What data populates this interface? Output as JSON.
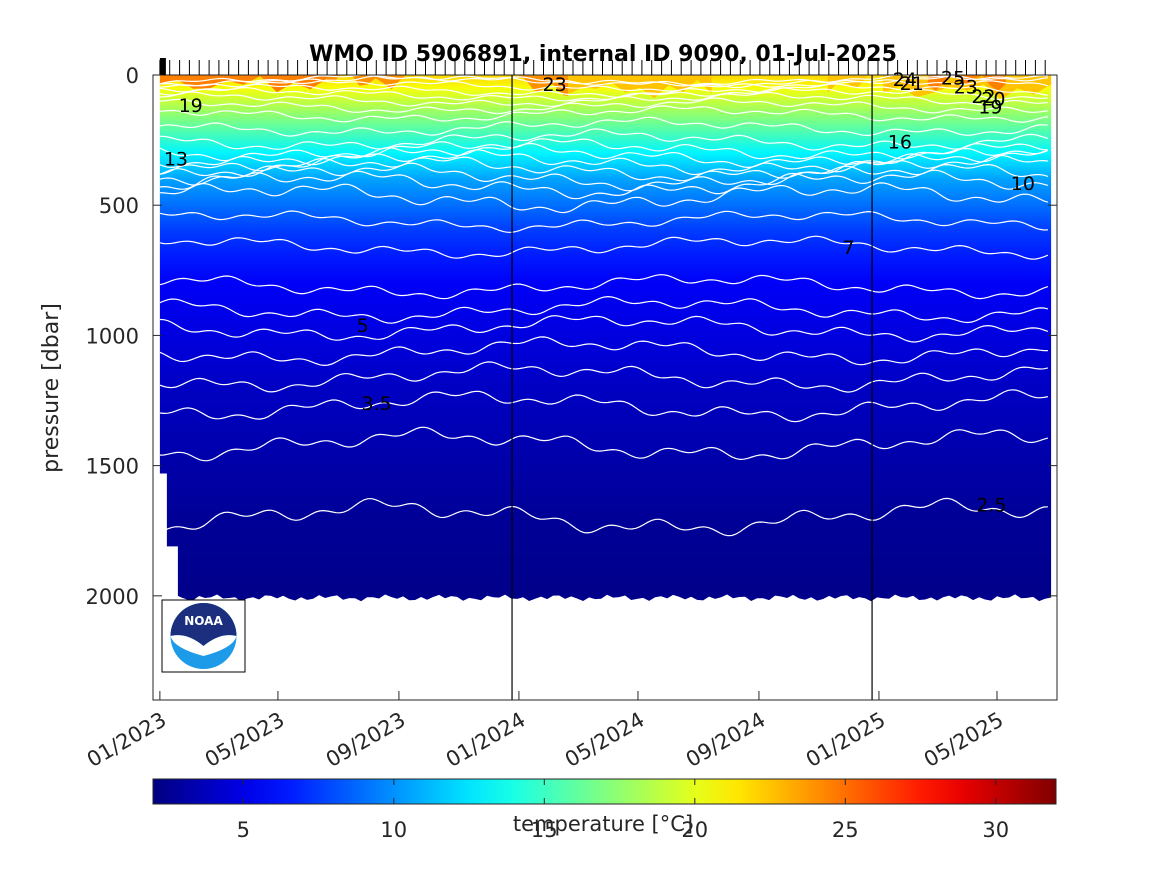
{
  "chart_data": {
    "type": "heatmap",
    "title": "WMO ID 5906891, internal ID 9090, 01-Jul-2025",
    "ylabel": "pressure [dbar]",
    "ylim": [
      0,
      2400
    ],
    "y_reversed": true,
    "y_ticks": [
      0,
      500,
      1000,
      1500,
      2000
    ],
    "y_tick_labels": [
      "0",
      "500",
      "1000",
      "1500",
      "2000"
    ],
    "x_ticks": [
      "2023-01-01",
      "2023-05-01",
      "2023-09-01",
      "2024-01-01",
      "2024-05-01",
      "2024-09-01",
      "2025-01-01",
      "2025-05-01"
    ],
    "x_tick_labels": [
      "01/2023",
      "05/2023",
      "09/2023",
      "01/2024",
      "05/2024",
      "09/2024",
      "01/2025",
      "05/2025"
    ],
    "xlim": [
      "2022-12-25",
      "2025-07-01"
    ],
    "year_boundaries": [
      "2023-12-25",
      "2024-12-25"
    ],
    "data_time_range": [
      "2023-01-01",
      "2025-06-25"
    ],
    "data_max_pressure": 2000,
    "temperature_profile": [
      {
        "pressure": 0,
        "temperature": 22
      },
      {
        "pressure": 50,
        "temperature": 20.5
      },
      {
        "pressure": 100,
        "temperature": 19
      },
      {
        "pressure": 200,
        "temperature": 16
      },
      {
        "pressure": 300,
        "temperature": 13
      },
      {
        "pressure": 400,
        "temperature": 10.5
      },
      {
        "pressure": 500,
        "temperature": 9
      },
      {
        "pressure": 600,
        "temperature": 7.5
      },
      {
        "pressure": 700,
        "temperature": 6.5
      },
      {
        "pressure": 800,
        "temperature": 5.5
      },
      {
        "pressure": 1000,
        "temperature": 4.8
      },
      {
        "pressure": 1200,
        "temperature": 4
      },
      {
        "pressure": 1500,
        "temperature": 3.2
      },
      {
        "pressure": 1700,
        "temperature": 2.7
      },
      {
        "pressure": 2000,
        "temperature": 2.3
      }
    ],
    "contour_levels": [
      {
        "temperature": 25,
        "pressure": 25
      },
      {
        "temperature": 24,
        "pressure": 20
      },
      {
        "temperature": 23,
        "pressure": 40
      },
      {
        "temperature": 22,
        "pressure": 60
      },
      {
        "temperature": 21,
        "pressure": 75
      },
      {
        "temperature": 20,
        "pressure": 95
      },
      {
        "temperature": 19,
        "pressure": 120
      },
      {
        "temperature": 18,
        "pressure": 150
      },
      {
        "temperature": 17,
        "pressure": 200
      },
      {
        "temperature": 16,
        "pressure": 250
      },
      {
        "temperature": 15,
        "pressure": 285
      },
      {
        "temperature": 14,
        "pressure": 310
      },
      {
        "temperature": 13,
        "pressure": 335
      },
      {
        "temperature": 12,
        "pressure": 360
      },
      {
        "temperature": 11,
        "pressure": 390
      },
      {
        "temperature": 10,
        "pressure": 420
      },
      {
        "temperature": 9,
        "pressure": 470
      },
      {
        "temperature": 8,
        "pressure": 560
      },
      {
        "temperature": 7,
        "pressure": 660
      },
      {
        "temperature": 6,
        "pressure": 810
      },
      {
        "temperature": 5.5,
        "pressure": 900
      },
      {
        "temperature": 5,
        "pressure": 970
      },
      {
        "temperature": 4.5,
        "pressure": 1060
      },
      {
        "temperature": 4,
        "pressure": 1160
      },
      {
        "temperature": 3.5,
        "pressure": 1270
      },
      {
        "temperature": 3,
        "pressure": 1420
      },
      {
        "temperature": 2.5,
        "pressure": 1700
      }
    ],
    "contour_labels": [
      {
        "text": "19",
        "date": "2023-01-20",
        "pressure": 115
      },
      {
        "text": "13",
        "date": "2023-01-05",
        "pressure": 320
      },
      {
        "text": "5",
        "date": "2023-07-20",
        "pressure": 960
      },
      {
        "text": "3.5",
        "date": "2023-07-25",
        "pressure": 1260
      },
      {
        "text": "23",
        "date": "2024-01-25",
        "pressure": 35
      },
      {
        "text": "7",
        "date": "2024-11-25",
        "pressure": 660
      },
      {
        "text": "16",
        "date": "2025-01-10",
        "pressure": 255
      },
      {
        "text": "24",
        "date": "2025-01-15",
        "pressure": 15
      },
      {
        "text": "21",
        "date": "2025-01-22",
        "pressure": 30
      },
      {
        "text": "25",
        "date": "2025-03-05",
        "pressure": 10
      },
      {
        "text": "23",
        "date": "2025-03-18",
        "pressure": 45
      },
      {
        "text": "22",
        "date": "2025-04-05",
        "pressure": 80
      },
      {
        "text": "20",
        "date": "2025-04-15",
        "pressure": 90
      },
      {
        "text": "19",
        "date": "2025-04-12",
        "pressure": 120
      },
      {
        "text": "10",
        "date": "2025-05-15",
        "pressure": 415
      },
      {
        "text": "2.5",
        "date": "2025-04-10",
        "pressure": 1650
      }
    ],
    "colorbar": {
      "label": "temperature [°C]",
      "range": [
        2,
        32
      ],
      "ticks": [
        5,
        10,
        15,
        20,
        25,
        30
      ],
      "tick_labels": [
        "5",
        "10",
        "15",
        "20",
        "25",
        "30"
      ],
      "colormap": "jet"
    }
  },
  "logo": {
    "text": "NOAA",
    "colors": {
      "dark": "#1b2f7e",
      "light": "#1d9be8"
    }
  },
  "colors": {
    "axis": "#262626",
    "contour": "#ffffff",
    "boundary": "#000000"
  }
}
